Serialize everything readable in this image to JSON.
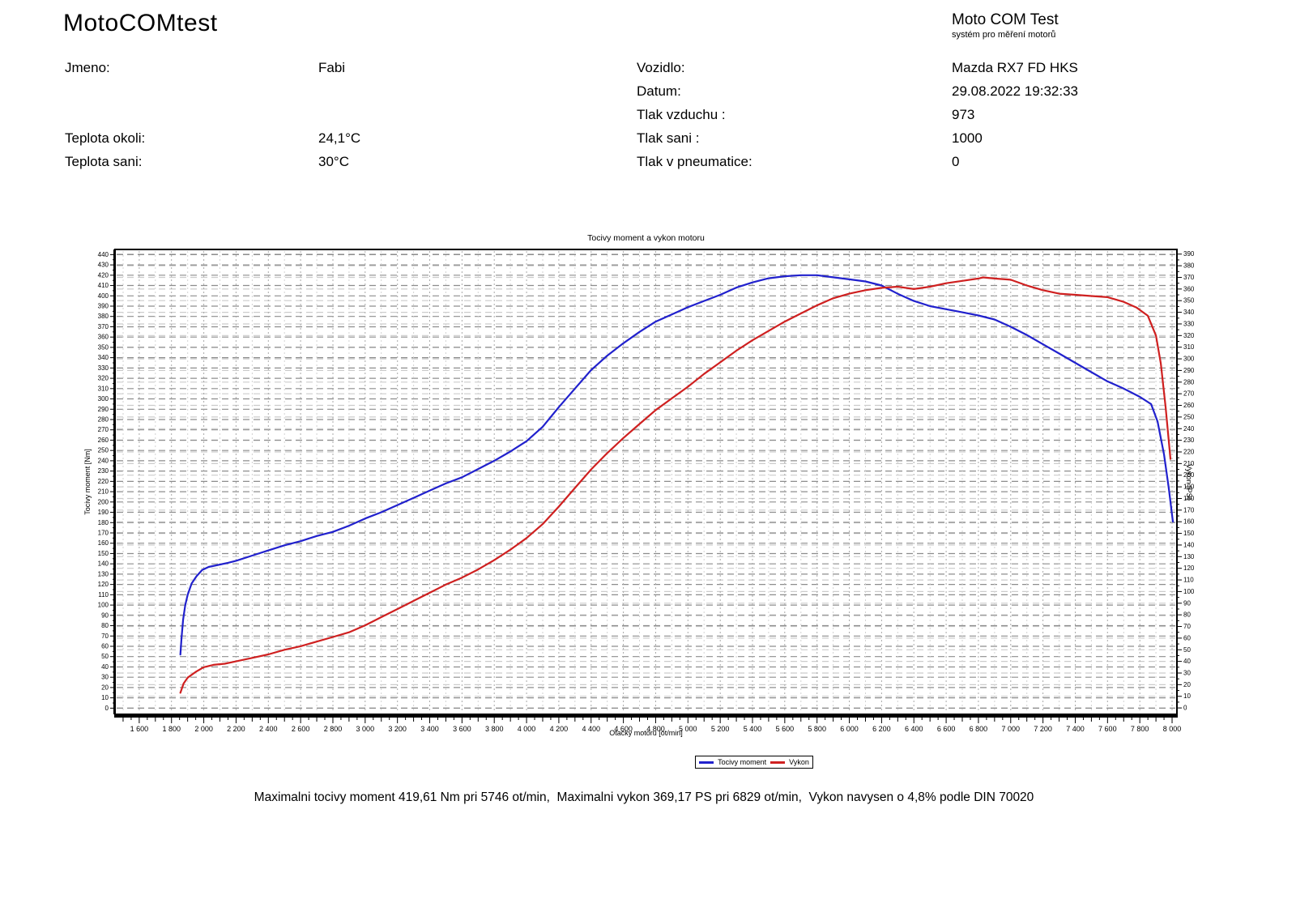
{
  "header": {
    "app_title": "MotoCOMtest",
    "brand_title": "Moto COM Test",
    "brand_subtitle": "systém pro měření motorů",
    "fields_left": [
      {
        "label": "Jmeno:",
        "value": "Fabi"
      },
      {
        "label": "Teplota okoli:",
        "value": "24,1°C"
      },
      {
        "label": "Teplota sani:",
        "value": "30°C"
      }
    ],
    "fields_right": [
      {
        "label": "Vozidlo:",
        "value": "Mazda RX7 FD HKS"
      },
      {
        "label": "Datum:",
        "value": "29.08.2022 19:32:33"
      },
      {
        "label": "Tlak vzduchu :",
        "value": "973"
      },
      {
        "label": "Tlak sani :",
        "value": "1000"
      },
      {
        "label": "Tlak v pneumatice:",
        "value": "0"
      }
    ]
  },
  "summary": "Maximalni tocivy moment 419,61 Nm pri 5746 ot/min,  Maximalni vykon 369,17 PS pri 6829 ot/min,  Vykon navysen o 4,8% podle DIN 70020",
  "chart_data": {
    "type": "line",
    "title": "Tocivy moment a vykon motoru",
    "xlabel": "Otacky motoru [ot/min]",
    "ylabel_left": "Tocivy moment [Nm]",
    "ylabel_right": "Vykon [PS]",
    "grid": "dashed",
    "legend_position": "bottom-center",
    "max_torque": {
      "value_nm": 419.61,
      "rpm": 5746
    },
    "max_power": {
      "value_ps": 369.17,
      "rpm": 6829
    },
    "x_axis": {
      "min": 1600,
      "max": 8000,
      "label_step": 200,
      "minor_step": 100,
      "tick_step": 50,
      "domain": [
        1450,
        8030
      ]
    },
    "left_axis": {
      "min": 0,
      "max": 440,
      "step": 10,
      "domain": [
        -6,
        445
      ]
    },
    "right_axis": {
      "min": 0,
      "max": 390,
      "step": 10,
      "domain": [
        -5.5,
        394
      ]
    },
    "series": [
      {
        "name": "Tocivy moment",
        "axis": "left",
        "unit": "Nm",
        "color": "#2121cd",
        "points": [
          [
            1855,
            52
          ],
          [
            1862,
            68
          ],
          [
            1872,
            86
          ],
          [
            1885,
            100
          ],
          [
            1900,
            110
          ],
          [
            1925,
            121
          ],
          [
            1955,
            128
          ],
          [
            1990,
            134
          ],
          [
            2030,
            137
          ],
          [
            2090,
            139
          ],
          [
            2150,
            141
          ],
          [
            2200,
            143
          ],
          [
            2300,
            148
          ],
          [
            2400,
            153
          ],
          [
            2500,
            158
          ],
          [
            2600,
            162
          ],
          [
            2700,
            167
          ],
          [
            2800,
            171
          ],
          [
            2900,
            177
          ],
          [
            3000,
            184
          ],
          [
            3100,
            190
          ],
          [
            3200,
            197
          ],
          [
            3300,
            204
          ],
          [
            3400,
            211
          ],
          [
            3500,
            218
          ],
          [
            3600,
            224
          ],
          [
            3700,
            232
          ],
          [
            3800,
            240
          ],
          [
            3900,
            249
          ],
          [
            4000,
            259
          ],
          [
            4100,
            273
          ],
          [
            4200,
            292
          ],
          [
            4300,
            310
          ],
          [
            4400,
            328
          ],
          [
            4500,
            342
          ],
          [
            4600,
            354
          ],
          [
            4700,
            365
          ],
          [
            4800,
            375
          ],
          [
            4900,
            382
          ],
          [
            5000,
            389
          ],
          [
            5100,
            395
          ],
          [
            5200,
            401
          ],
          [
            5300,
            408
          ],
          [
            5400,
            413
          ],
          [
            5500,
            417
          ],
          [
            5600,
            419
          ],
          [
            5700,
            420
          ],
          [
            5746,
            420
          ],
          [
            5800,
            420
          ],
          [
            5900,
            418
          ],
          [
            6000,
            416
          ],
          [
            6100,
            414
          ],
          [
            6200,
            410
          ],
          [
            6300,
            402
          ],
          [
            6400,
            395
          ],
          [
            6500,
            390
          ],
          [
            6600,
            387
          ],
          [
            6700,
            384
          ],
          [
            6800,
            381
          ],
          [
            6900,
            377
          ],
          [
            7000,
            370
          ],
          [
            7100,
            362
          ],
          [
            7200,
            353
          ],
          [
            7300,
            344
          ],
          [
            7400,
            335
          ],
          [
            7500,
            326
          ],
          [
            7600,
            317
          ],
          [
            7700,
            310
          ],
          [
            7800,
            302
          ],
          [
            7870,
            295
          ],
          [
            7910,
            278
          ],
          [
            7950,
            246
          ],
          [
            7980,
            213
          ],
          [
            8005,
            181
          ]
        ]
      },
      {
        "name": "Vykon",
        "axis": "right",
        "unit": "PS",
        "color": "#cf2020",
        "points": [
          [
            1855,
            13
          ],
          [
            1875,
            21
          ],
          [
            1900,
            26
          ],
          [
            1950,
            31
          ],
          [
            2000,
            35
          ],
          [
            2060,
            37
          ],
          [
            2130,
            38
          ],
          [
            2200,
            40
          ],
          [
            2300,
            43
          ],
          [
            2400,
            46
          ],
          [
            2500,
            50
          ],
          [
            2600,
            53
          ],
          [
            2700,
            57
          ],
          [
            2800,
            61
          ],
          [
            2900,
            65
          ],
          [
            3000,
            71
          ],
          [
            3100,
            78
          ],
          [
            3200,
            85
          ],
          [
            3300,
            92
          ],
          [
            3400,
            99
          ],
          [
            3500,
            106
          ],
          [
            3600,
            112
          ],
          [
            3700,
            119
          ],
          [
            3800,
            127
          ],
          [
            3900,
            136
          ],
          [
            4000,
            146
          ],
          [
            4100,
            158
          ],
          [
            4200,
            173
          ],
          [
            4300,
            189
          ],
          [
            4400,
            205
          ],
          [
            4500,
            219
          ],
          [
            4600,
            232
          ],
          [
            4700,
            244
          ],
          [
            4800,
            256
          ],
          [
            4900,
            266
          ],
          [
            5000,
            276
          ],
          [
            5100,
            287
          ],
          [
            5200,
            297
          ],
          [
            5300,
            307
          ],
          [
            5400,
            316
          ],
          [
            5500,
            324
          ],
          [
            5600,
            332
          ],
          [
            5700,
            339
          ],
          [
            5800,
            346
          ],
          [
            5900,
            352
          ],
          [
            6000,
            356
          ],
          [
            6100,
            359
          ],
          [
            6200,
            361
          ],
          [
            6300,
            362
          ],
          [
            6400,
            360
          ],
          [
            6500,
            362
          ],
          [
            6600,
            365
          ],
          [
            6700,
            367
          ],
          [
            6800,
            369
          ],
          [
            6829,
            370
          ],
          [
            6900,
            369
          ],
          [
            7000,
            368
          ],
          [
            7100,
            363
          ],
          [
            7200,
            359
          ],
          [
            7300,
            356
          ],
          [
            7400,
            355
          ],
          [
            7500,
            354
          ],
          [
            7600,
            353
          ],
          [
            7700,
            349
          ],
          [
            7780,
            344
          ],
          [
            7850,
            337
          ],
          [
            7900,
            320
          ],
          [
            7930,
            296
          ],
          [
            7960,
            258
          ],
          [
            7990,
            214
          ]
        ]
      }
    ]
  }
}
